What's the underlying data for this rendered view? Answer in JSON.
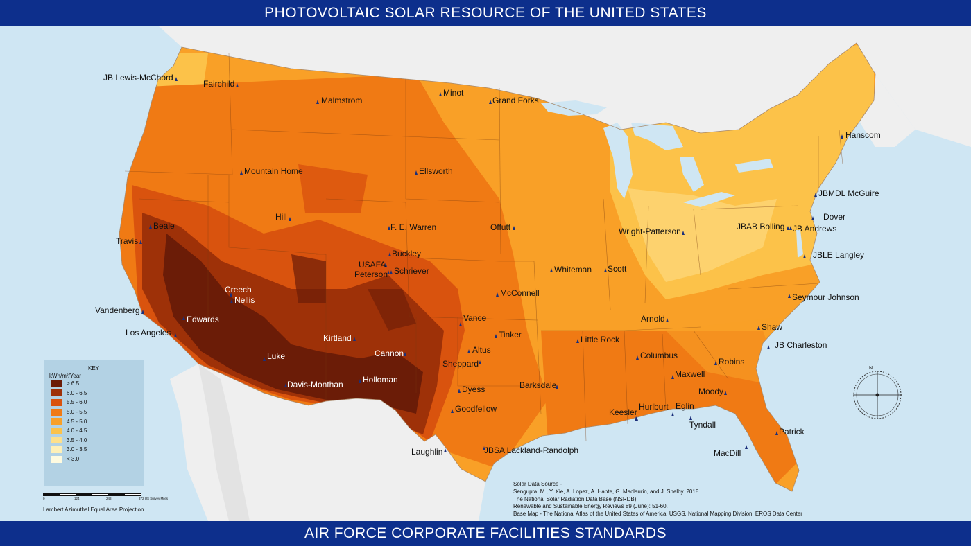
{
  "header": {
    "title": "PHOTOVOLTAIC SOLAR RESOURCE OF THE UNITED STATES"
  },
  "footer": {
    "title": "AIR FORCE CORPORATE FACILITIES STANDARDS"
  },
  "legend": {
    "title": "KEY",
    "unit": "kWh/m²/Year",
    "items": [
      {
        "label": "> 6.5",
        "color": "#6b1c07"
      },
      {
        "label": "6.0 - 6.5",
        "color": "#9e3108"
      },
      {
        "label": "5.5 - 6.0",
        "color": "#d9530e"
      },
      {
        "label": "5.0 - 5.5",
        "color": "#f07a14"
      },
      {
        "label": "4.5 - 5.0",
        "color": "#f9a027"
      },
      {
        "label": "4.0 - 4.5",
        "color": "#fcc249"
      },
      {
        "label": "3.5 - 4.0",
        "color": "#fde08c"
      },
      {
        "label": "3.0 - 3.5",
        "color": "#fef0b8"
      },
      {
        "label": "< 3.0",
        "color": "#fffbe0"
      }
    ]
  },
  "scale_bar": {
    "labels": [
      "0",
      "124",
      "248",
      "372 US Survey Miles"
    ]
  },
  "projection": "Lambert Azimuthal Equal Area Projection",
  "source": {
    "lines": [
      "Solar Data Source -",
      "Sengupta, M., Y. Xie, A. Lopez, A. Habte, G. Maclaurin, and J. Shelby. 2018.",
      "The National Solar Radiation Data Base (NSRDB).",
      "Renewable and Sustainable Energy Reviews  89 (June): 51-60.",
      "Base Map - The National Atlas of the United States of America, USGS, National Mapping Division, EROS Data Center"
    ]
  },
  "compass": {
    "north_label": "N"
  },
  "bases": [
    {
      "name": "JB Lewis-McChord",
      "style": "dark"
    },
    {
      "name": "Fairchild",
      "style": "dark"
    },
    {
      "name": "Malmstrom",
      "style": "dark"
    },
    {
      "name": "Minot",
      "style": "dark"
    },
    {
      "name": "Grand Forks",
      "style": "dark"
    },
    {
      "name": "Hanscom",
      "style": "dark"
    },
    {
      "name": "Mountain Home",
      "style": "dark"
    },
    {
      "name": "Ellsworth",
      "style": "dark"
    },
    {
      "name": "JBMDL McGuire",
      "style": "dark"
    },
    {
      "name": "Dover",
      "style": "dark"
    },
    {
      "name": "Hill",
      "style": "dark"
    },
    {
      "name": "F. E. Warren",
      "style": "dark"
    },
    {
      "name": "Offutt",
      "style": "dark"
    },
    {
      "name": "Wright-Patterson",
      "style": "dark"
    },
    {
      "name": "JBAB Bolling",
      "style": "dark"
    },
    {
      "name": "JB Andrews",
      "style": "dark"
    },
    {
      "name": "Beale",
      "style": "dark"
    },
    {
      "name": "Travis",
      "style": "dark"
    },
    {
      "name": "Buckley",
      "style": "dark"
    },
    {
      "name": "USAFA",
      "style": "dark"
    },
    {
      "name": "Peterson",
      "style": "dark"
    },
    {
      "name": "Schriever",
      "style": "dark"
    },
    {
      "name": "Whiteman",
      "style": "dark"
    },
    {
      "name": "Scott",
      "style": "dark"
    },
    {
      "name": "JBLE Langley",
      "style": "dark"
    },
    {
      "name": "Creech",
      "style": "light"
    },
    {
      "name": "Nellis",
      "style": "light"
    },
    {
      "name": "McConnell",
      "style": "dark"
    },
    {
      "name": "Seymour Johnson",
      "style": "dark"
    },
    {
      "name": "Vandenberg",
      "style": "dark"
    },
    {
      "name": "Edwards",
      "style": "light"
    },
    {
      "name": "Vance",
      "style": "dark"
    },
    {
      "name": "Arnold",
      "style": "dark"
    },
    {
      "name": "Los Angeles",
      "style": "dark"
    },
    {
      "name": "Tinker",
      "style": "dark"
    },
    {
      "name": "Shaw",
      "style": "dark"
    },
    {
      "name": "Kirtland",
      "style": "light"
    },
    {
      "name": "Little Rock",
      "style": "dark"
    },
    {
      "name": "JB Charleston",
      "style": "dark"
    },
    {
      "name": "Altus",
      "style": "dark"
    },
    {
      "name": "Luke",
      "style": "light"
    },
    {
      "name": "Cannon",
      "style": "light"
    },
    {
      "name": "Columbus",
      "style": "dark"
    },
    {
      "name": "Sheppard",
      "style": "dark"
    },
    {
      "name": "Robins",
      "style": "dark"
    },
    {
      "name": "Maxwell",
      "style": "dark"
    },
    {
      "name": "Davis-Monthan",
      "style": "light"
    },
    {
      "name": "Holloman",
      "style": "light"
    },
    {
      "name": "Barksdale",
      "style": "dark"
    },
    {
      "name": "Dyess",
      "style": "dark"
    },
    {
      "name": "Moody",
      "style": "dark"
    },
    {
      "name": "Goodfellow",
      "style": "dark"
    },
    {
      "name": "Hurlburt",
      "style": "dark"
    },
    {
      "name": "Eglin",
      "style": "dark"
    },
    {
      "name": "Keesler",
      "style": "dark"
    },
    {
      "name": "Tyndall",
      "style": "dark"
    },
    {
      "name": "Patrick",
      "style": "dark"
    },
    {
      "name": "Laughlin",
      "style": "dark"
    },
    {
      "name": "JBSA Lackland-Randolph",
      "style": "dark"
    },
    {
      "name": "MacDill",
      "style": "dark"
    }
  ]
}
